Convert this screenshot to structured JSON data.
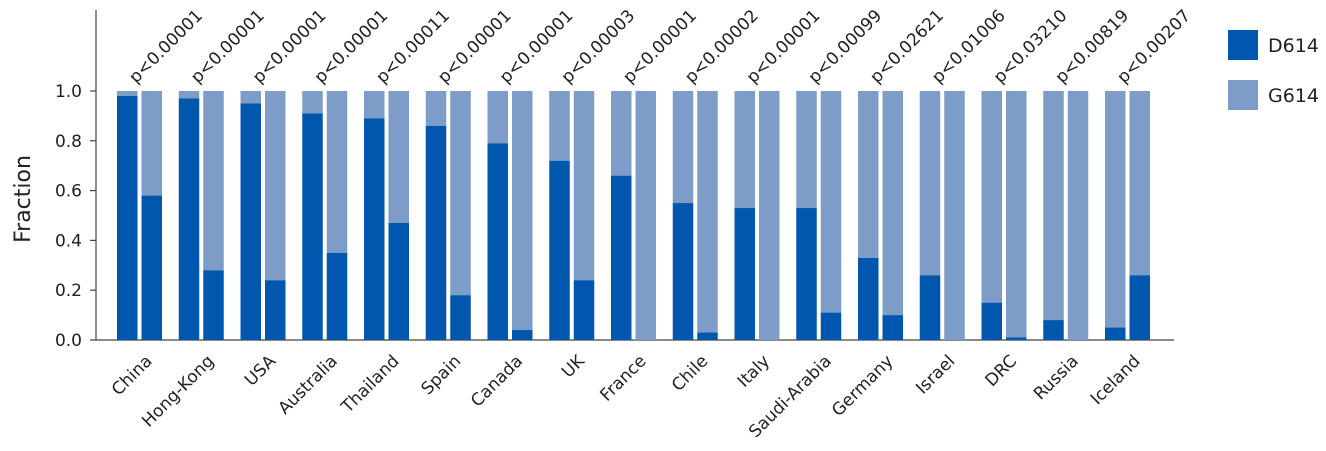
{
  "chart_data": {
    "type": "bar",
    "subtype": "stacked-paired",
    "ylabel": "Fraction",
    "ylim": [
      0,
      1.0
    ],
    "yticks": [
      "0.0",
      "0.2",
      "0.4",
      "0.6",
      "0.8",
      "1.0"
    ],
    "legend_position": "right",
    "colors": {
      "D614": "#0057ad",
      "G614": "#7d9cc8"
    },
    "series": [
      {
        "name": "D614",
        "color": "#0057ad"
      },
      {
        "name": "G614",
        "color": "#7d9cc8"
      }
    ],
    "categories": [
      "China",
      "Hong-Kong",
      "USA",
      "Australia",
      "Thailand",
      "Spain",
      "Canada",
      "UK",
      "France",
      "Chile",
      "Italy",
      "Saudi-Arabia",
      "Germany",
      "Israel",
      "DRC",
      "Russia",
      "Iceland"
    ],
    "p_values": [
      "p<0.00001",
      "p<0.00001",
      "p<0.00001",
      "p<0.00001",
      "p<0.00011",
      "p<0.00001",
      "p<0.00001",
      "p<0.00003",
      "p<0.00001",
      "p<0.00002",
      "p<0.00001",
      "p<0.00099",
      "p<0.02621",
      "p<0.01006",
      "p<0.03210",
      "p<0.00819",
      "p<0.00207"
    ],
    "d614_first_bar": [
      0.98,
      0.97,
      0.95,
      0.91,
      0.89,
      0.86,
      0.79,
      0.72,
      0.66,
      0.55,
      0.53,
      0.53,
      0.33,
      0.26,
      0.15,
      0.08,
      0.05
    ],
    "d614_second_bar": [
      0.58,
      0.28,
      0.24,
      0.35,
      0.47,
      0.18,
      0.04,
      0.24,
      0.0,
      0.03,
      0.0,
      0.11,
      0.1,
      0.0,
      0.01,
      0.0,
      0.26
    ]
  }
}
